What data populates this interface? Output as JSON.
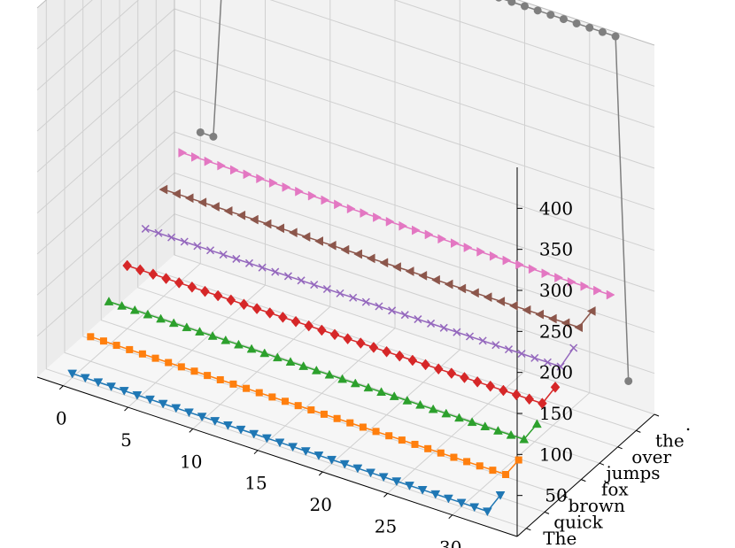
{
  "chart_data": {
    "type": "line",
    "projection": "3d",
    "x": [
      0,
      1,
      2,
      3,
      4,
      5,
      6,
      7,
      8,
      9,
      10,
      11,
      12,
      13,
      14,
      15,
      16,
      17,
      18,
      19,
      20,
      21,
      22,
      23,
      24,
      25,
      26,
      27,
      28,
      29,
      30,
      31,
      32,
      33
    ],
    "x_ticks": [
      "0",
      "5",
      "10",
      "15",
      "20",
      "25",
      "30"
    ],
    "y_ticks": [
      "The",
      "quick",
      "brown",
      "fox",
      "jumps",
      "over",
      "the",
      "."
    ],
    "z_ticks": [
      "50",
      "100",
      "150",
      "200",
      "250",
      "300",
      "350",
      "400"
    ],
    "xlim": [
      -2,
      35
    ],
    "zlim": [
      0,
      450
    ],
    "grid": true,
    "series": [
      {
        "category": "The",
        "color": "#1f77b4",
        "marker": "tri_down",
        "values": [
          5,
          5,
          5,
          5,
          5,
          5,
          5,
          5,
          5,
          5,
          5,
          5,
          5,
          5,
          5,
          5,
          5,
          5,
          5,
          5,
          5,
          5,
          5,
          5,
          5,
          5,
          5,
          5,
          5,
          5,
          5,
          5,
          5,
          30
        ]
      },
      {
        "category": "quick",
        "color": "#ff7f0e",
        "marker": "square",
        "values": [
          30,
          30,
          30,
          30,
          30,
          30,
          30,
          30,
          30,
          30,
          30,
          30,
          30,
          30,
          30,
          30,
          30,
          30,
          30,
          30,
          30,
          30,
          30,
          30,
          30,
          30,
          30,
          30,
          30,
          30,
          30,
          30,
          30,
          53
        ]
      },
      {
        "category": "brown",
        "color": "#2ca02c",
        "marker": "tri_up",
        "values": [
          53,
          53,
          53,
          53,
          53,
          53,
          53,
          53,
          53,
          53,
          53,
          53,
          53,
          53,
          53,
          53,
          53,
          53,
          53,
          53,
          53,
          53,
          53,
          53,
          53,
          53,
          53,
          53,
          53,
          53,
          53,
          53,
          53,
          77
        ]
      },
      {
        "category": "fox",
        "color": "#d62728",
        "marker": "diamond",
        "values": [
          77,
          77,
          77,
          77,
          77,
          77,
          77,
          77,
          77,
          77,
          77,
          77,
          77,
          77,
          77,
          77,
          77,
          77,
          77,
          77,
          77,
          77,
          77,
          77,
          77,
          77,
          77,
          77,
          77,
          77,
          77,
          77,
          77,
          102
        ]
      },
      {
        "category": "jumps",
        "color": "#9467bd",
        "marker": "x",
        "values": [
          102,
          102,
          102,
          102,
          102,
          102,
          102,
          102,
          102,
          102,
          102,
          102,
          102,
          102,
          102,
          102,
          102,
          102,
          102,
          102,
          102,
          102,
          102,
          102,
          102,
          102,
          102,
          102,
          102,
          102,
          102,
          102,
          102,
          130
        ]
      },
      {
        "category": "over",
        "color": "#8c564b",
        "marker": "tri_left",
        "values": [
          130,
          130,
          130,
          130,
          130,
          130,
          130,
          130,
          130,
          130,
          130,
          130,
          130,
          130,
          130,
          130,
          130,
          130,
          130,
          130,
          130,
          130,
          130,
          130,
          130,
          130,
          130,
          130,
          130,
          130,
          130,
          130,
          130,
          155
        ]
      },
      {
        "category": "the",
        "color": "#e377c2",
        "marker": "tri_right",
        "values": [
          155,
          155,
          155,
          155,
          155,
          155,
          155,
          155,
          155,
          155,
          155,
          155,
          155,
          155,
          155,
          155,
          155,
          155,
          155,
          155,
          155,
          155,
          155,
          155,
          155,
          155,
          155,
          155,
          155,
          155,
          155,
          155,
          155,
          155
        ]
      },
      {
        "category": ".",
        "color": "#7f7f7f",
        "marker": "circle",
        "values": [
          160,
          160,
          445,
          445,
          445,
          445,
          445,
          445,
          445,
          445,
          445,
          445,
          445,
          445,
          445,
          445,
          445,
          445,
          445,
          445,
          445,
          445,
          445,
          445,
          445,
          445,
          445,
          445,
          445,
          445,
          445,
          445,
          445,
          30
        ]
      }
    ]
  }
}
